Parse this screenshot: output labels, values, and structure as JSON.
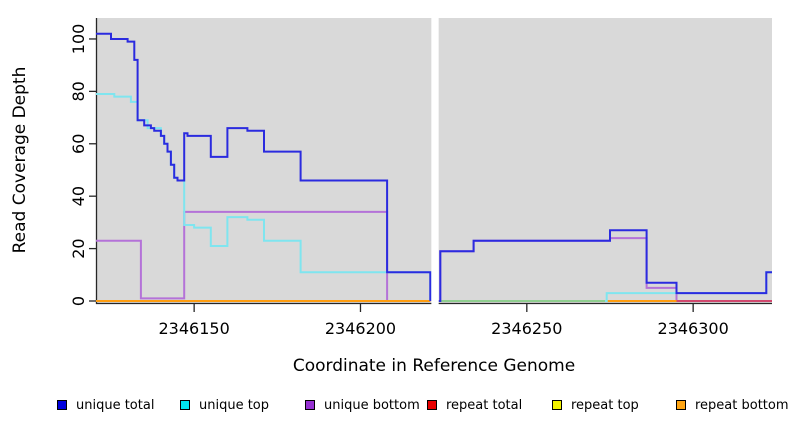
{
  "chart_data": {
    "type": "line",
    "subtype": "step",
    "title": "",
    "xlabel": "Coordinate in Reference Genome",
    "ylabel": "Read Coverage Depth",
    "xlim": [
      2346120.5,
      2346323.7
    ],
    "ylim": [
      0,
      108
    ],
    "x_ticks": [
      2346150,
      2346200,
      2346250,
      2346300
    ],
    "y_ticks": [
      0,
      20,
      40,
      60,
      80,
      100
    ],
    "grid": false,
    "panel_color": "#d9d9d9",
    "axis_color": "#262626",
    "gap_band": {
      "from": 2346221,
      "to": 2346223.5,
      "color": "#ffffff"
    },
    "legend": {
      "position": "bottom",
      "entries": [
        {
          "label": "unique total",
          "color": "#0000dd"
        },
        {
          "label": "unique top",
          "color": "#00e5ee"
        },
        {
          "label": "unique bottom",
          "color": "#9631d2"
        },
        {
          "label": "repeat total",
          "color": "#e80000"
        },
        {
          "label": "repeat top",
          "color": "#f2f200"
        },
        {
          "label": "repeat bottom",
          "color": "#ffa513"
        }
      ]
    },
    "series": [
      {
        "name": "unique bottom",
        "line_color": "#b472d8",
        "segments": [
          [
            [
              2346120.5,
              23
            ],
            [
              2346134,
              1
            ],
            [
              2346147,
              34
            ],
            [
              2346208,
              0
            ],
            [
              2346221,
              0
            ]
          ],
          [
            [
              2346223.5,
              0
            ],
            [
              2346224,
              19
            ],
            [
              2346234,
              23
            ],
            [
              2346275,
              24
            ],
            [
              2346286,
              5
            ],
            [
              2346295,
              0
            ]
          ]
        ]
      },
      {
        "name": "repeat total",
        "line_color": "#d1486e",
        "segments": [
          [
            [
              2346295,
              0
            ],
            [
              2346323.7,
              0
            ]
          ]
        ]
      },
      {
        "name": "repeat top",
        "line_color": "#8fce8f",
        "segments": [
          [
            [
              2346223.5,
              0
            ],
            [
              2346274,
              0
            ]
          ]
        ]
      },
      {
        "name": "repeat bottom",
        "line_color": "#ff9d10",
        "segments": [
          [
            [
              2346120.5,
              0
            ],
            [
              2346221,
              0
            ]
          ],
          [
            [
              2346274,
              0
            ],
            [
              2346295,
              0
            ]
          ]
        ]
      },
      {
        "name": "unique top",
        "line_color": "#7fe5ef",
        "segments": [
          [
            [
              2346120.5,
              79
            ],
            [
              2346126,
              78
            ],
            [
              2346131,
              76
            ],
            [
              2346133,
              69
            ],
            [
              2346136,
              66
            ],
            [
              2346140,
              63
            ],
            [
              2346141,
              60
            ],
            [
              2346142,
              57
            ],
            [
              2346143,
              52
            ],
            [
              2346144,
              47
            ],
            [
              2346145,
              46
            ],
            [
              2346147,
              29
            ],
            [
              2346150,
              28
            ],
            [
              2346155,
              21
            ],
            [
              2346160,
              32
            ],
            [
              2346166,
              31
            ],
            [
              2346171,
              23
            ],
            [
              2346182,
              11
            ],
            [
              2346221,
              0
            ]
          ],
          [
            [
              2346273.5,
              0
            ],
            [
              2346274,
              3
            ],
            [
              2346322,
              11
            ],
            [
              2346323.7,
              11
            ]
          ]
        ]
      },
      {
        "name": "unique total",
        "line_color": "#2b2bdf",
        "segments": [
          [
            [
              2346120.5,
              102
            ],
            [
              2346125,
              100
            ],
            [
              2346130,
              99
            ],
            [
              2346132,
              92
            ],
            [
              2346133,
              69
            ],
            [
              2346135,
              67
            ],
            [
              2346137,
              66
            ],
            [
              2346138,
              65
            ],
            [
              2346140,
              63
            ],
            [
              2346141,
              60
            ],
            [
              2346142,
              57
            ],
            [
              2346143,
              52
            ],
            [
              2346144,
              47
            ],
            [
              2346145,
              46
            ],
            [
              2346147,
              64
            ],
            [
              2346148,
              63
            ],
            [
              2346155,
              55
            ],
            [
              2346160,
              66
            ],
            [
              2346166,
              65
            ],
            [
              2346171,
              57
            ],
            [
              2346182,
              46
            ],
            [
              2346208,
              11
            ],
            [
              2346221,
              0
            ]
          ],
          [
            [
              2346223.5,
              0
            ],
            [
              2346224,
              19
            ],
            [
              2346234,
              23
            ],
            [
              2346275,
              27
            ],
            [
              2346286,
              7
            ],
            [
              2346295,
              3
            ],
            [
              2346322,
              11
            ],
            [
              2346323.7,
              11
            ]
          ]
        ]
      }
    ]
  }
}
